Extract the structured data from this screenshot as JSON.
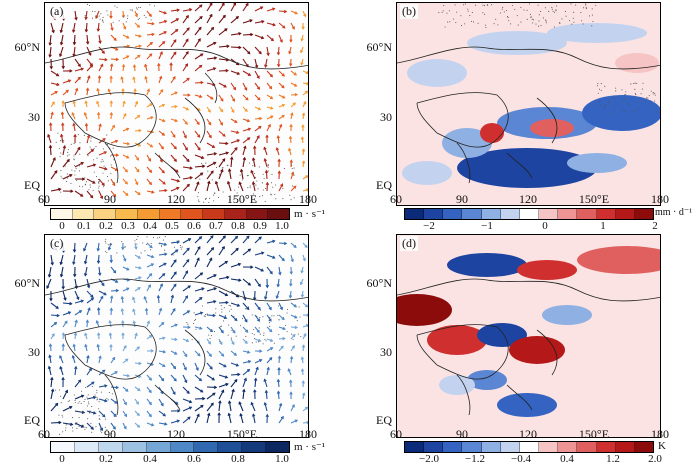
{
  "panels": [
    {
      "label": "(a)"
    },
    {
      "label": "(b)"
    },
    {
      "label": "(c)"
    },
    {
      "label": "(d)"
    }
  ],
  "lat_labels": [
    "60°N",
    "30",
    "EQ"
  ],
  "lon_labels": [
    "60",
    "90",
    "120",
    "150°E",
    "180"
  ],
  "colorbars": {
    "a": {
      "ticks": [
        "0",
        "0.1",
        "0.2",
        "0.3",
        "0.4",
        "0.5",
        "0.6",
        "0.7",
        "0.8",
        "0.9",
        "1.0"
      ],
      "unit": "m · s⁻¹"
    },
    "b": {
      "ticks": [
        "−2",
        "−1",
        "0",
        "1",
        "2"
      ],
      "unit": "mm · d⁻¹"
    },
    "c": {
      "ticks": [
        "0",
        "0.2",
        "0.4",
        "0.6",
        "0.8",
        "1.0"
      ],
      "unit": "m · s⁻¹"
    },
    "d": {
      "ticks": [
        "−2.0",
        "−1.2",
        "−0.4",
        "0.4",
        "1.2",
        "2.0"
      ],
      "unit": "K"
    }
  },
  "colors": {
    "orange_scale": [
      "#fff7e6",
      "#fde8b4",
      "#fbd282",
      "#f8b94e",
      "#f59b33",
      "#ee7a28",
      "#e0551f",
      "#c93a1d",
      "#a8231a",
      "#861616",
      "#6a0f10"
    ],
    "blue_scale": [
      "#f5f9fd",
      "#dceaf7",
      "#c0d8ee",
      "#9cc1e3",
      "#74a6d6",
      "#4e88c6",
      "#3169b0",
      "#1f4f96",
      "#153a7b",
      "#0d2861"
    ],
    "diverging": [
      "#0c2a7a",
      "#1d44a0",
      "#3463c2",
      "#5a86d3",
      "#8fb0e2",
      "#c3d3ef",
      "#ffffff",
      "#f6c4c4",
      "#ee9494",
      "#e06060",
      "#cf2f2f",
      "#b41818",
      "#8c0c0c"
    ]
  }
}
